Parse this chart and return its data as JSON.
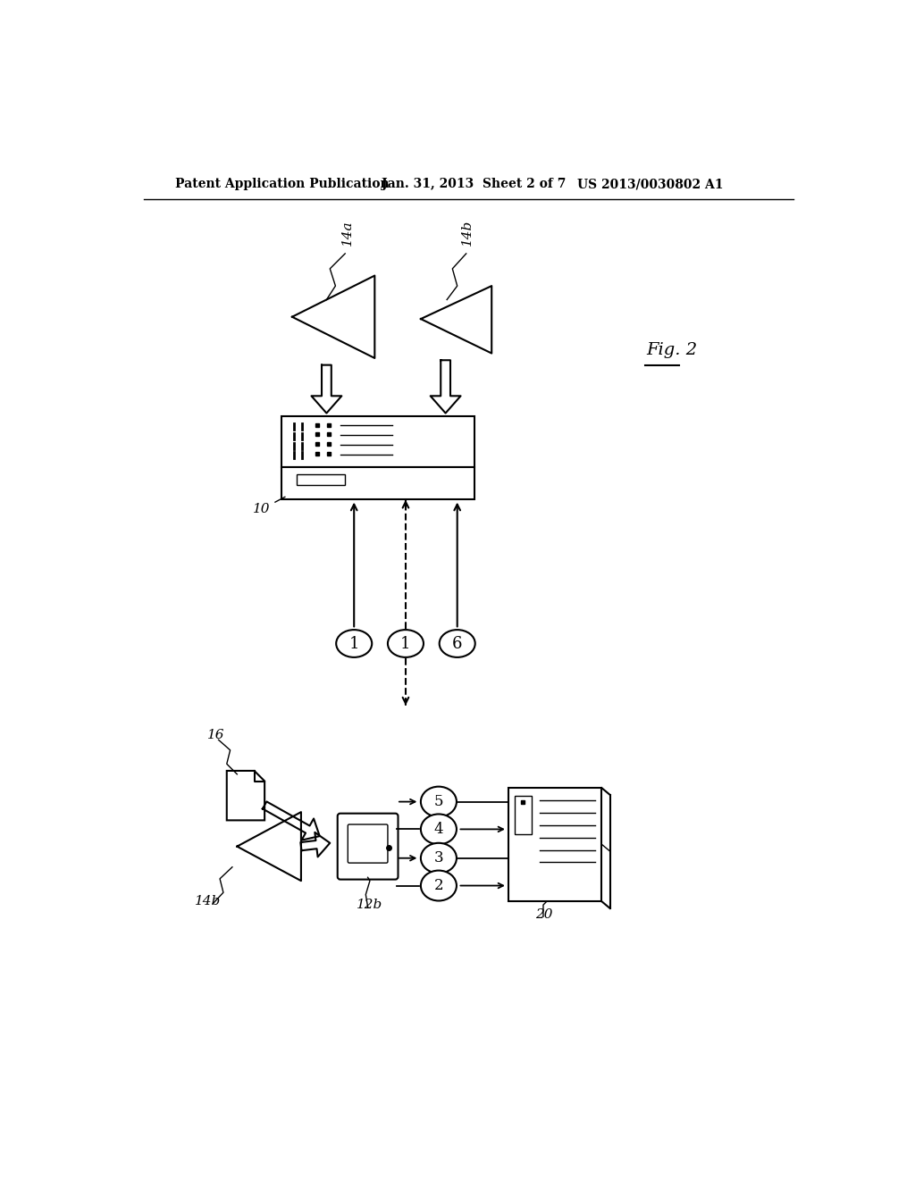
{
  "bg_color": "#ffffff",
  "header_left": "Patent Application Publication",
  "header_center": "Jan. 31, 2013  Sheet 2 of 7",
  "header_right": "US 2013/0030802 A1"
}
